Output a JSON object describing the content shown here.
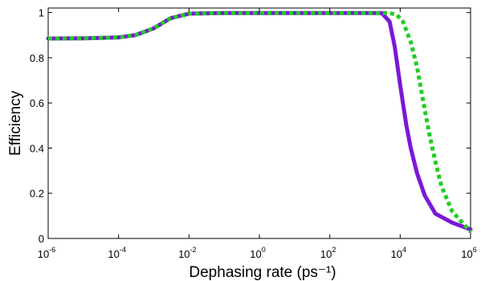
{
  "chart_data": {
    "type": "line",
    "title": "",
    "xlabel": "Dephasing rate (ps⁻¹)",
    "ylabel": "Efficiency",
    "xscale": "log",
    "xlim": [
      1e-06,
      1000000.0
    ],
    "ylim": [
      0,
      1.02
    ],
    "grid": false,
    "x_ticks": [
      {
        "base": "10",
        "exp": "-6",
        "value": 1e-06
      },
      {
        "base": "10",
        "exp": "-4",
        "value": 0.0001
      },
      {
        "base": "10",
        "exp": "-2",
        "value": 0.01
      },
      {
        "base": "10",
        "exp": "0",
        "value": 1
      },
      {
        "base": "10",
        "exp": "2",
        "value": 100
      },
      {
        "base": "10",
        "exp": "4",
        "value": 10000
      },
      {
        "base": "10",
        "exp": "6",
        "value": 1000000
      }
    ],
    "y_ticks": [
      "0",
      "0.2",
      "0.4",
      "0.6",
      "0.8",
      "1"
    ],
    "series": [
      {
        "color": "#7b18d6",
        "style": "solid",
        "x": [
          1e-06,
          1e-05,
          0.0001,
          0.0003,
          0.001,
          0.003,
          0.01,
          0.1,
          1,
          10,
          100,
          1000,
          3000,
          5000,
          7000,
          10000,
          15000,
          20000,
          30000,
          50000,
          100000,
          300000,
          1000000
        ],
        "y": [
          0.885,
          0.886,
          0.89,
          0.9,
          0.93,
          0.975,
          0.995,
          0.998,
          0.998,
          0.998,
          0.998,
          0.998,
          0.998,
          0.96,
          0.85,
          0.68,
          0.5,
          0.4,
          0.29,
          0.19,
          0.11,
          0.07,
          0.04
        ]
      },
      {
        "color": "#22cc22",
        "style": "dotted",
        "x": [
          1e-06,
          1e-05,
          0.0001,
          0.0003,
          0.001,
          0.003,
          0.01,
          0.1,
          1,
          10,
          100,
          1000,
          5000,
          8000,
          12000,
          20000,
          30000,
          50000,
          70000,
          100000,
          150000,
          300000,
          1000000
        ],
        "y": [
          0.885,
          0.886,
          0.89,
          0.9,
          0.93,
          0.975,
          0.995,
          0.998,
          0.998,
          0.998,
          0.998,
          0.998,
          0.998,
          0.99,
          0.96,
          0.87,
          0.76,
          0.57,
          0.45,
          0.34,
          0.23,
          0.12,
          0.03
        ]
      }
    ]
  }
}
